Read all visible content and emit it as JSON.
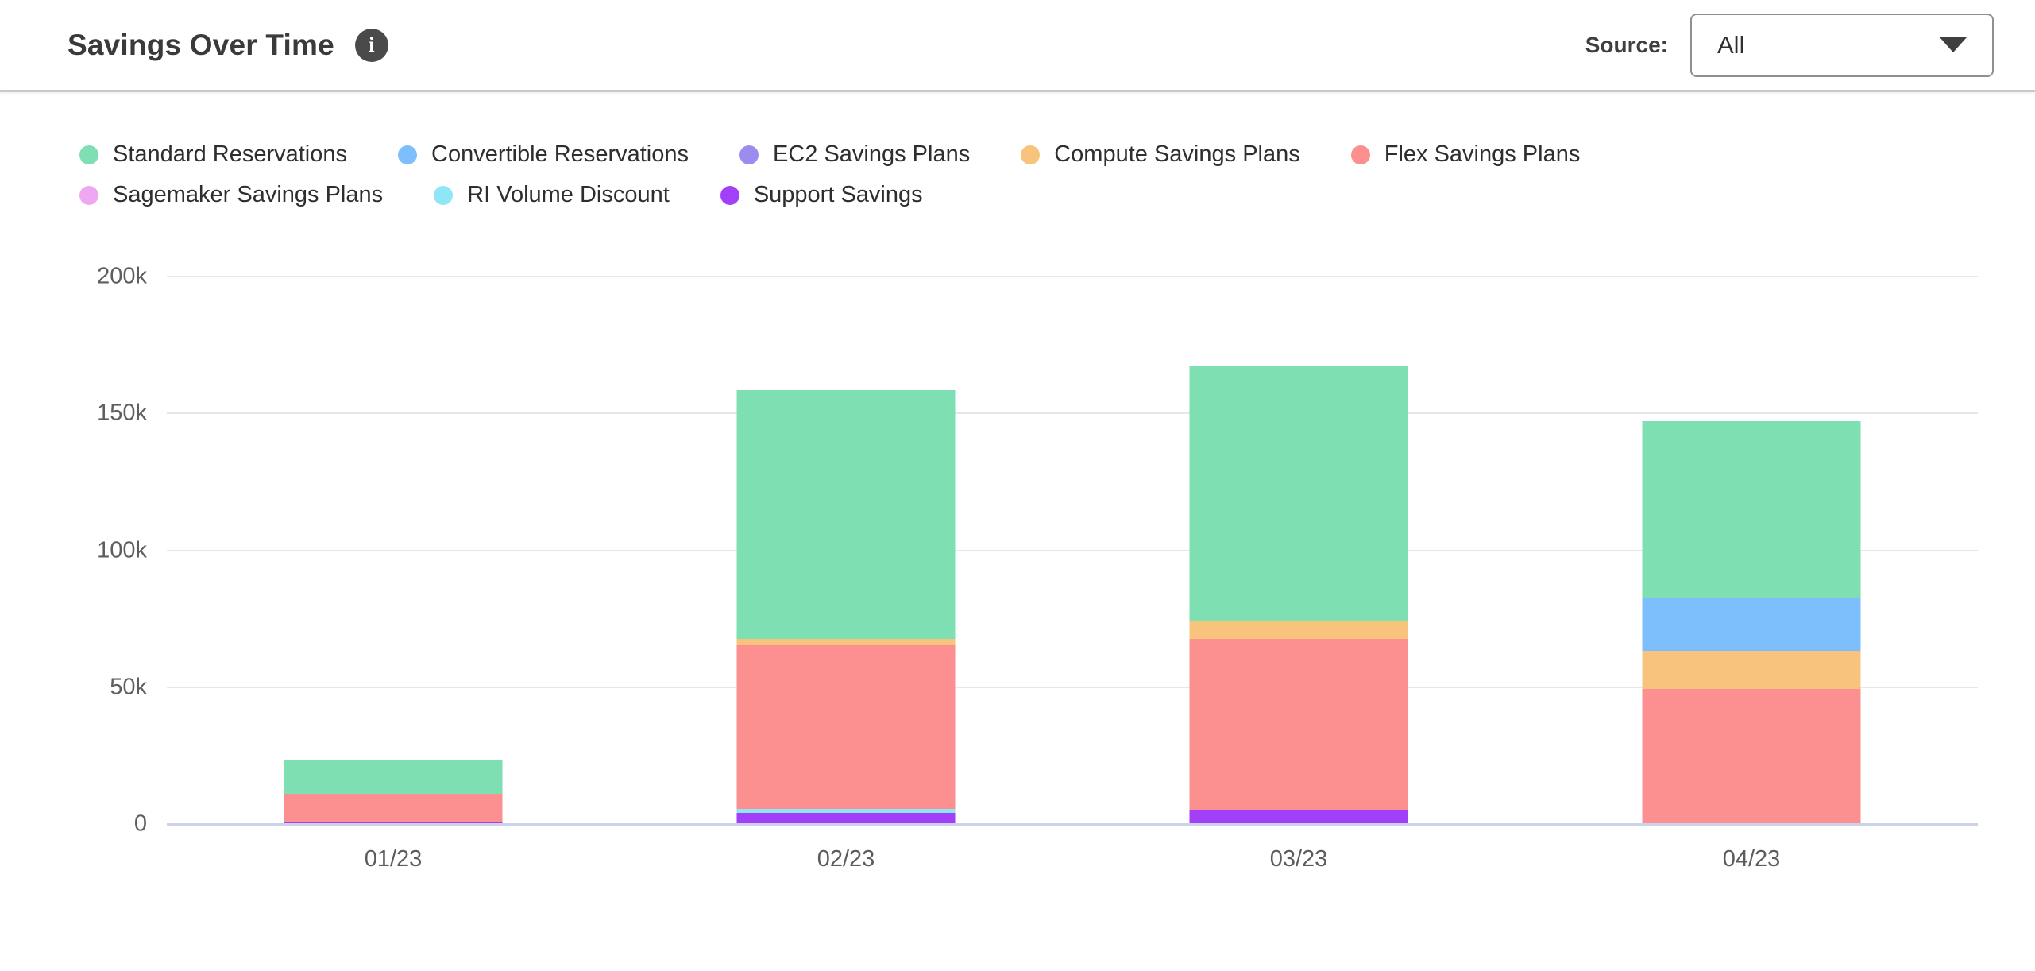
{
  "header": {
    "title": "Savings Over Time",
    "source_label": "Source:",
    "source_value": "All"
  },
  "icons": {
    "info": "info-icon",
    "caret": "chevron-down-icon"
  },
  "chart_data": {
    "type": "bar",
    "stacked": true,
    "title": "Savings Over Time",
    "xlabel": "",
    "ylabel": "",
    "categories": [
      "01/23",
      "02/23",
      "03/23",
      "04/23"
    ],
    "series": [
      {
        "name": "Standard Reservations",
        "color": "#7EDFB3",
        "values": [
          12200,
          90900,
          93200,
          64700
        ]
      },
      {
        "name": "Convertible Reservations",
        "color": "#7DBEFC",
        "values": [
          0,
          0,
          0,
          19400
        ]
      },
      {
        "name": "EC2 Savings Plans",
        "color": "#9D8CF0",
        "values": [
          0,
          0,
          0,
          0
        ]
      },
      {
        "name": "Compute Savings Plans",
        "color": "#F8C47D",
        "values": [
          0,
          2300,
          6700,
          13900
        ]
      },
      {
        "name": "Flex Savings Plans",
        "color": "#FC8F8F",
        "values": [
          10200,
          59800,
          62700,
          49300
        ]
      },
      {
        "name": "Sagemaker Savings Plans",
        "color": "#EEA8F1",
        "values": [
          0,
          0,
          0,
          0
        ]
      },
      {
        "name": "RI Volume Discount",
        "color": "#8FE6F6",
        "values": [
          0,
          1450,
          0,
          0
        ]
      },
      {
        "name": "Support Savings",
        "color": "#A23FF9",
        "values": [
          900,
          4100,
          4900,
          0
        ]
      }
    ],
    "stack_order_bottom_to_top": [
      "Support Savings",
      "RI Volume Discount",
      "Sagemaker Savings Plans",
      "Flex Savings Plans",
      "Compute Savings Plans",
      "EC2 Savings Plans",
      "Convertible Reservations",
      "Standard Reservations"
    ],
    "ylim": [
      0,
      200000
    ],
    "yticks": [
      {
        "value": 0,
        "label": "0"
      },
      {
        "value": 50000,
        "label": "50k"
      },
      {
        "value": 100000,
        "label": "100k"
      },
      {
        "value": 150000,
        "label": "150k"
      },
      {
        "value": 200000,
        "label": "200k"
      }
    ],
    "grid": "horizontal",
    "legend_position": "top",
    "axis_colors": {
      "grid": "#e7e7e7",
      "baseline": "#ccd2e8",
      "tick_text": "#5e5e5e"
    }
  }
}
